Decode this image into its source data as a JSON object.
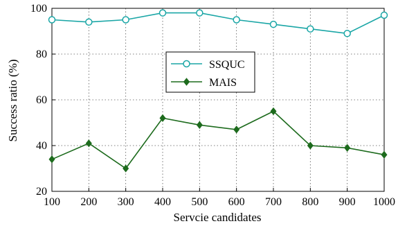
{
  "chart_data": {
    "type": "line",
    "title": "",
    "xlabel": "Servcie candidates",
    "ylabel": "Success ratio (%)",
    "x": [
      100,
      200,
      300,
      400,
      500,
      600,
      700,
      800,
      900,
      1000
    ],
    "xticks": [
      "100",
      "200",
      "300",
      "400",
      "500",
      "600",
      "700",
      "800",
      "900",
      "1000"
    ],
    "yticks": [
      "20",
      "40",
      "60",
      "80",
      "100"
    ],
    "xlim": [
      100,
      1000
    ],
    "ylim": [
      20,
      100
    ],
    "grid": true,
    "legend_position": "center",
    "series": [
      {
        "name": "SSQUC",
        "color": "#1aa6a6",
        "marker": "circle",
        "values": [
          95,
          94,
          95,
          98,
          98,
          95,
          93,
          91,
          89,
          97
        ]
      },
      {
        "name": "MAIS",
        "color": "#1d6b1d",
        "marker": "diamond",
        "values": [
          34,
          41,
          30,
          52,
          49,
          47,
          55,
          40,
          39,
          36
        ]
      }
    ]
  }
}
